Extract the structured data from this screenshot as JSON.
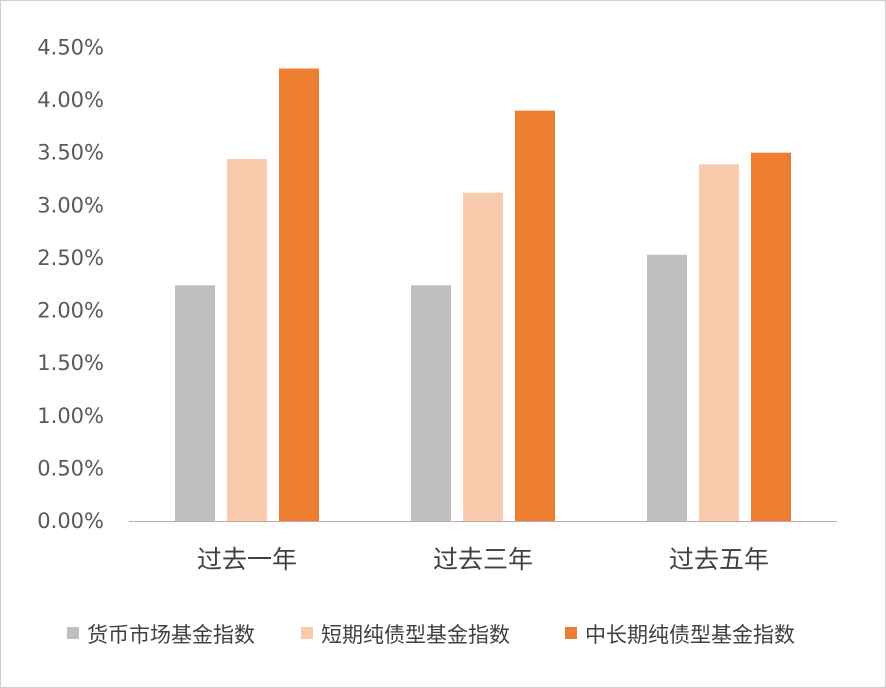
{
  "colors": {
    "background": "#ffffff",
    "axis_line": "#c9a6a6",
    "series": [
      "#bfbfbf",
      "#f8cbad",
      "#ed7d31"
    ]
  },
  "chart_data": {
    "type": "bar",
    "title": "",
    "xlabel": "",
    "ylabel": "",
    "categories": [
      "过去一年",
      "过去三年",
      "过去五年"
    ],
    "ylim": [
      0,
      4.5
    ],
    "yticks": [
      "0.00%",
      "0.50%",
      "1.00%",
      "1.50%",
      "2.00%",
      "2.50%",
      "3.00%",
      "3.50%",
      "4.00%",
      "4.50%"
    ],
    "grid": false,
    "legend_position": "bottom",
    "series": [
      {
        "name": "货币市场基金指数",
        "values": [
          2.24,
          2.24,
          2.53
        ]
      },
      {
        "name": "短期纯债型基金指数",
        "values": [
          3.44,
          3.12,
          3.39
        ]
      },
      {
        "name": "中长期纯债型基金指数",
        "values": [
          4.3,
          3.9,
          3.5
        ]
      }
    ]
  }
}
